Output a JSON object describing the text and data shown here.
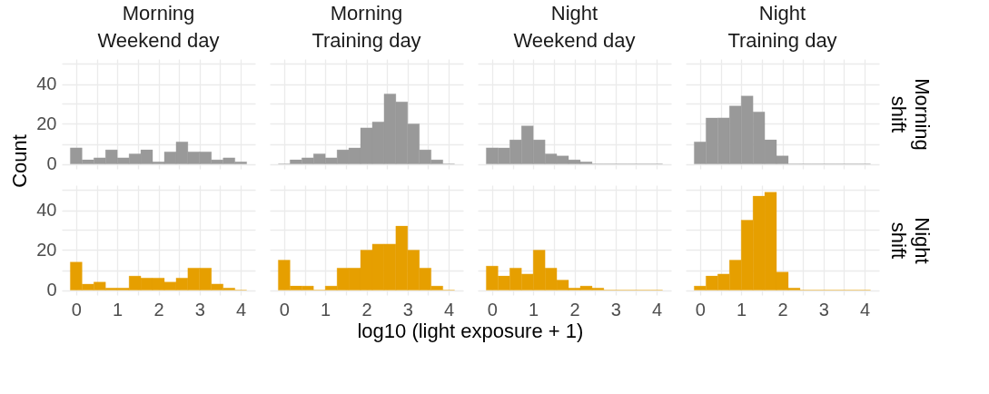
{
  "chart_data": [
    {
      "type": "histogram",
      "title": "Morning\nWeekend day",
      "bins": [
        -0.143,
        0.143,
        0.429,
        0.714,
        1,
        1.286,
        1.571,
        1.857,
        2.143,
        2.429,
        2.714,
        3,
        3.286,
        3.571,
        3.857,
        4.143
      ],
      "values": [
        8,
        2,
        3,
        7,
        3,
        5,
        7,
        1,
        6,
        11,
        6,
        6,
        2,
        3,
        1
      ],
      "color": "#999999",
      "xlim": [
        -0.35,
        4.35
      ],
      "ylim": [
        -2.5,
        52.5
      ],
      "xticks": [
        0,
        {
          "value": 0.5,
          "label": null
        },
        1,
        {
          "value": 1.5,
          "label": null
        },
        2,
        {
          "value": 2.5,
          "label": null
        },
        3,
        {
          "value": 3.5,
          "label": null
        },
        4
      ],
      "yticks": [
        0,
        {
          "value": 10,
          "label": null
        },
        20,
        {
          "value": 30,
          "label": null
        },
        40,
        {
          "value": 50,
          "label": null
        }
      ],
      "grid": true,
      "tick_labels": "y"
    },
    {
      "type": "histogram",
      "title": "Morning\nTraining day",
      "bins": [
        -0.143,
        0.143,
        0.429,
        0.714,
        1,
        1.286,
        1.571,
        1.857,
        2.143,
        2.429,
        2.714,
        3,
        3.286,
        3.571,
        3.857,
        4.143
      ],
      "values": [
        0,
        2,
        3,
        5,
        3,
        7,
        8,
        18,
        21,
        35,
        31,
        20,
        7,
        2,
        0
      ],
      "color": "#999999",
      "xlim": [
        -0.35,
        4.35
      ],
      "ylim": [
        -2.5,
        52.5
      ],
      "xticks": [
        0,
        {
          "value": 0.5,
          "label": null
        },
        1,
        {
          "value": 1.5,
          "label": null
        },
        2,
        {
          "value": 2.5,
          "label": null
        },
        3,
        {
          "value": 3.5,
          "label": null
        },
        4
      ],
      "yticks": [
        0,
        {
          "value": 10,
          "label": null
        },
        20,
        {
          "value": 30,
          "label": null
        },
        40,
        {
          "value": 50,
          "label": null
        }
      ],
      "grid": true,
      "tick_labels": false
    },
    {
      "type": "histogram",
      "title": "Night\nWeekend day",
      "bins": [
        -0.143,
        0.143,
        0.429,
        0.714,
        1,
        1.286,
        1.571,
        1.857,
        2.143,
        2.429,
        2.714,
        3,
        3.286,
        3.571,
        3.857,
        4.143
      ],
      "values": [
        8,
        8,
        12,
        19,
        12,
        5,
        4,
        2,
        1,
        0,
        0,
        0,
        0,
        0,
        0
      ],
      "color": "#999999",
      "xlim": [
        -0.35,
        4.35
      ],
      "ylim": [
        -2.5,
        52.5
      ],
      "xticks": [
        0,
        {
          "value": 0.5,
          "label": null
        },
        1,
        {
          "value": 1.5,
          "label": null
        },
        2,
        {
          "value": 2.5,
          "label": null
        },
        3,
        {
          "value": 3.5,
          "label": null
        },
        4
      ],
      "yticks": [
        0,
        {
          "value": 10,
          "label": null
        },
        20,
        {
          "value": 30,
          "label": null
        },
        40,
        {
          "value": 50,
          "label": null
        }
      ],
      "grid": true,
      "tick_labels": false
    },
    {
      "type": "histogram",
      "title": "Night\nTraining day",
      "y2label": "Morning\nshift",
      "bins": [
        -0.143,
        0.143,
        0.429,
        0.714,
        1,
        1.286,
        1.571,
        1.857,
        2.143,
        2.429,
        2.714,
        3,
        3.286,
        3.571,
        3.857,
        4.143
      ],
      "values": [
        11,
        23,
        23,
        29,
        34,
        26,
        12,
        4,
        0,
        0,
        0,
        0,
        0,
        0,
        0
      ],
      "color": "#999999",
      "xlim": [
        -0.35,
        4.35
      ],
      "ylim": [
        -2.5,
        52.5
      ],
      "xticks": [
        0,
        {
          "value": 0.5,
          "label": null
        },
        1,
        {
          "value": 1.5,
          "label": null
        },
        2,
        {
          "value": 2.5,
          "label": null
        },
        3,
        {
          "value": 3.5,
          "label": null
        },
        4
      ],
      "yticks": [
        0,
        {
          "value": 10,
          "label": null
        },
        20,
        {
          "value": 30,
          "label": null
        },
        40,
        {
          "value": 50,
          "label": null
        }
      ],
      "grid": true,
      "tick_labels": false
    },
    {
      "type": "histogram",
      "ylabel": "Count",
      "bins": [
        -0.143,
        0.143,
        0.429,
        0.714,
        1,
        1.286,
        1.571,
        1.857,
        2.143,
        2.429,
        2.714,
        3,
        3.286,
        3.571,
        3.857,
        4.143
      ],
      "values": [
        14,
        3,
        4,
        1,
        1,
        7,
        6,
        6,
        4,
        6,
        11,
        11,
        3,
        1,
        0
      ],
      "color": "#e69f00",
      "xlim": [
        -0.35,
        4.35
      ],
      "ylim": [
        -2.5,
        52.5
      ],
      "xticks": [
        0,
        {
          "value": 0.5,
          "label": null
        },
        1,
        {
          "value": 1.5,
          "label": null
        },
        2,
        {
          "value": 2.5,
          "label": null
        },
        3,
        {
          "value": 3.5,
          "label": null
        },
        4
      ],
      "yticks": [
        0,
        {
          "value": 10,
          "label": null
        },
        20,
        {
          "value": 30,
          "label": null
        },
        40,
        {
          "value": 50,
          "label": null
        }
      ],
      "grid": true
    },
    {
      "type": "histogram",
      "xlabel": "log10 (light exposure + 1)",
      "bins": [
        -0.143,
        0.143,
        0.429,
        0.714,
        1,
        1.286,
        1.571,
        1.857,
        2.143,
        2.429,
        2.714,
        3,
        3.286,
        3.571,
        3.857,
        4.143
      ],
      "values": [
        15,
        2,
        2,
        0,
        2,
        11,
        11,
        20,
        23,
        23,
        32,
        20,
        11,
        2,
        0
      ],
      "color": "#e69f00",
      "xlim": [
        -0.35,
        4.35
      ],
      "ylim": [
        -2.5,
        52.5
      ],
      "xticks": [
        0,
        {
          "value": 0.5,
          "label": null
        },
        1,
        {
          "value": 1.5,
          "label": null
        },
        2,
        {
          "value": 2.5,
          "label": null
        },
        3,
        {
          "value": 3.5,
          "label": null
        },
        4
      ],
      "yticks": [
        0,
        {
          "value": 10,
          "label": null
        },
        20,
        {
          "value": 30,
          "label": null
        },
        40,
        {
          "value": 50,
          "label": null
        }
      ],
      "grid": true,
      "tick_labels": "x"
    },
    {
      "type": "histogram",
      "bins": [
        -0.143,
        0.143,
        0.429,
        0.714,
        1,
        1.286,
        1.571,
        1.857,
        2.143,
        2.429,
        2.714,
        3,
        3.286,
        3.571,
        3.857,
        4.143
      ],
      "values": [
        12,
        7,
        11,
        8,
        20,
        11,
        5,
        1,
        2,
        1,
        0,
        0,
        0,
        0,
        0
      ],
      "color": "#e69f00",
      "xlim": [
        -0.35,
        4.35
      ],
      "ylim": [
        -2.5,
        52.5
      ],
      "xticks": [
        0,
        {
          "value": 0.5,
          "label": null
        },
        1,
        {
          "value": 1.5,
          "label": null
        },
        2,
        {
          "value": 2.5,
          "label": null
        },
        3,
        {
          "value": 3.5,
          "label": null
        },
        4
      ],
      "yticks": [
        0,
        {
          "value": 10,
          "label": null
        },
        20,
        {
          "value": 30,
          "label": null
        },
        40,
        {
          "value": 50,
          "label": null
        }
      ],
      "grid": true,
      "tick_labels": "x"
    },
    {
      "type": "histogram",
      "y2label": "Night\nshift",
      "bins": [
        -0.143,
        0.143,
        0.429,
        0.714,
        1,
        1.286,
        1.571,
        1.857,
        2.143,
        2.429,
        2.714,
        3,
        3.286,
        3.571,
        3.857,
        4.143
      ],
      "values": [
        2,
        7,
        8,
        15,
        35,
        47,
        49,
        9,
        1,
        0,
        0,
        0,
        0,
        0,
        0
      ],
      "color": "#e69f00",
      "xlim": [
        -0.35,
        4.35
      ],
      "ylim": [
        -2.5,
        52.5
      ],
      "xticks": [
        0,
        {
          "value": 0.5,
          "label": null
        },
        1,
        {
          "value": 1.5,
          "label": null
        },
        2,
        {
          "value": 2.5,
          "label": null
        },
        3,
        {
          "value": 3.5,
          "label": null
        },
        4
      ],
      "yticks": [
        0,
        {
          "value": 10,
          "label": null
        },
        20,
        {
          "value": 30,
          "label": null
        },
        40,
        {
          "value": 50,
          "label": null
        }
      ],
      "grid": true,
      "tick_labels": "x"
    }
  ]
}
